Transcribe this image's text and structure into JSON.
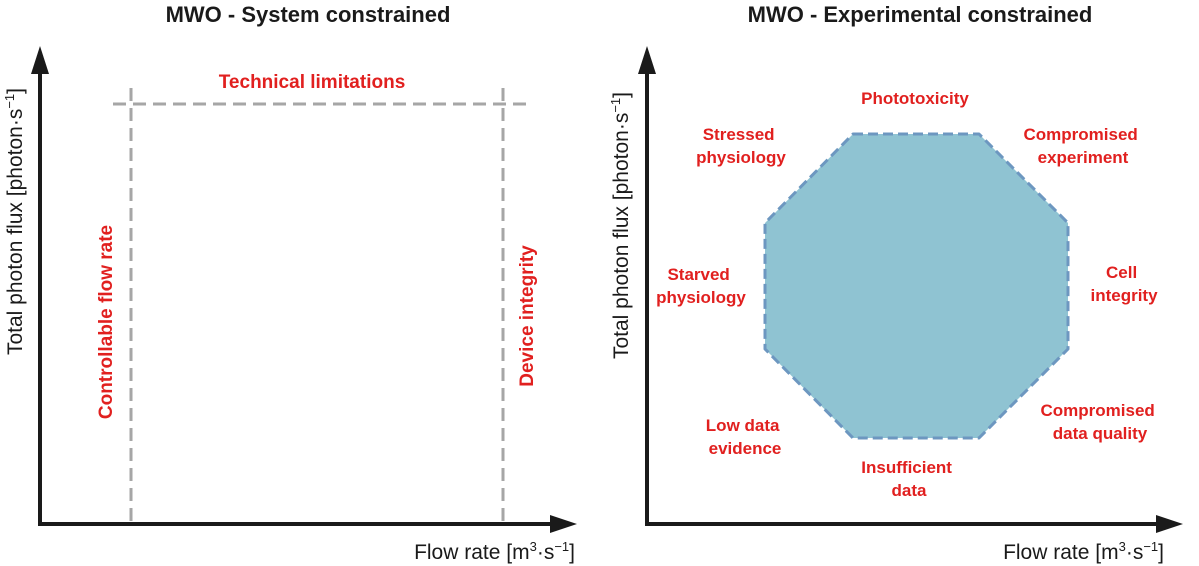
{
  "left_panel": {
    "title": "MWO - System constrained",
    "x_axis": {
      "label": "Flow rate [m",
      "sup1": "3",
      "mid": "·s",
      "sup2": "−1",
      "end": "]"
    },
    "y_axis": {
      "label": "Total photon flux [photon·s",
      "sup": "−1",
      "end": "]"
    },
    "constraints": {
      "top": "Technical limitations",
      "left": "Controllable flow rate",
      "right": "Device integrity"
    },
    "line_color": "#a6a6a6"
  },
  "right_panel": {
    "title": "MWO - Experimental constrained",
    "x_axis": {
      "label": "Flow rate [m",
      "sup1": "3",
      "mid": "·s",
      "sup2": "−1",
      "end": "]"
    },
    "y_axis": {
      "label": "Total photon flux [photon·s",
      "sup": "−1",
      "end": "]"
    },
    "region_fill": "#8fc3d2",
    "region_stroke": "#6d97c0",
    "labels": {
      "top": "Phototoxicity",
      "top_left": [
        "Stressed",
        "physiology"
      ],
      "top_right": [
        "Compromised",
        "experiment"
      ],
      "left": [
        "Starved",
        "physiology"
      ],
      "right": [
        "Cell",
        "integrity"
      ],
      "bottom_left": [
        "Low data",
        "evidence"
      ],
      "bottom_right": [
        "Compromised",
        "data quality"
      ],
      "bottom": [
        "Insufficient",
        "data"
      ]
    }
  },
  "colors": {
    "constraint_text": "#e1201f",
    "axis": "#1a1a1a"
  }
}
